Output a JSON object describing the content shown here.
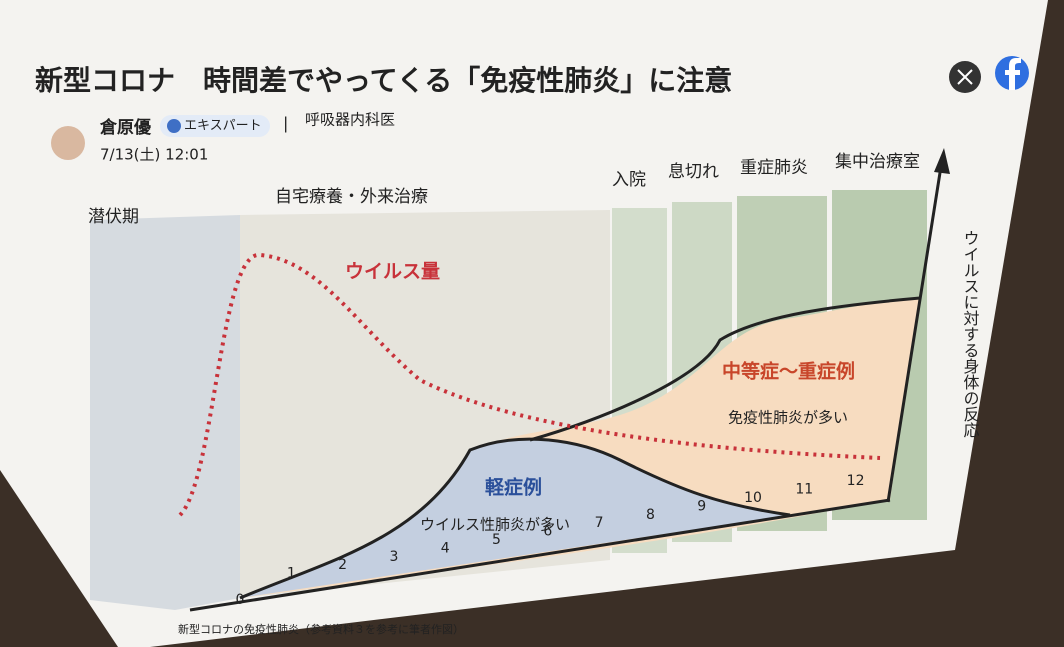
{
  "header": {
    "title": "新型コロナ　時間差でやってくる「免疫性肺炎」に注意",
    "author": "倉原優",
    "badge": "エキスパート",
    "separator": "|",
    "role": "呼吸器内科医",
    "date": "7/13(土) 12:01"
  },
  "diagram": {
    "phases": [
      "潜伏期",
      "自宅療養・外来治療",
      "入院",
      "息切れ",
      "重症肺炎",
      "集中治療室"
    ],
    "virus_label": "ウイルス量",
    "severe_label": "中等症〜重症例",
    "severe_note": "免疫性肺炎が多い",
    "mild_label": "軽症例",
    "mild_note": "ウイルス性肺炎が多い",
    "y_label": "ウイルスに対する身体の反応",
    "x_ticks": [
      "0",
      "1",
      "2",
      "3",
      "4",
      "5",
      "6",
      "7",
      "8",
      "9",
      "10",
      "11",
      "12"
    ],
    "caption": "新型コロナの免疫性肺炎（参考資料３を参考に筆者作図）"
  }
}
